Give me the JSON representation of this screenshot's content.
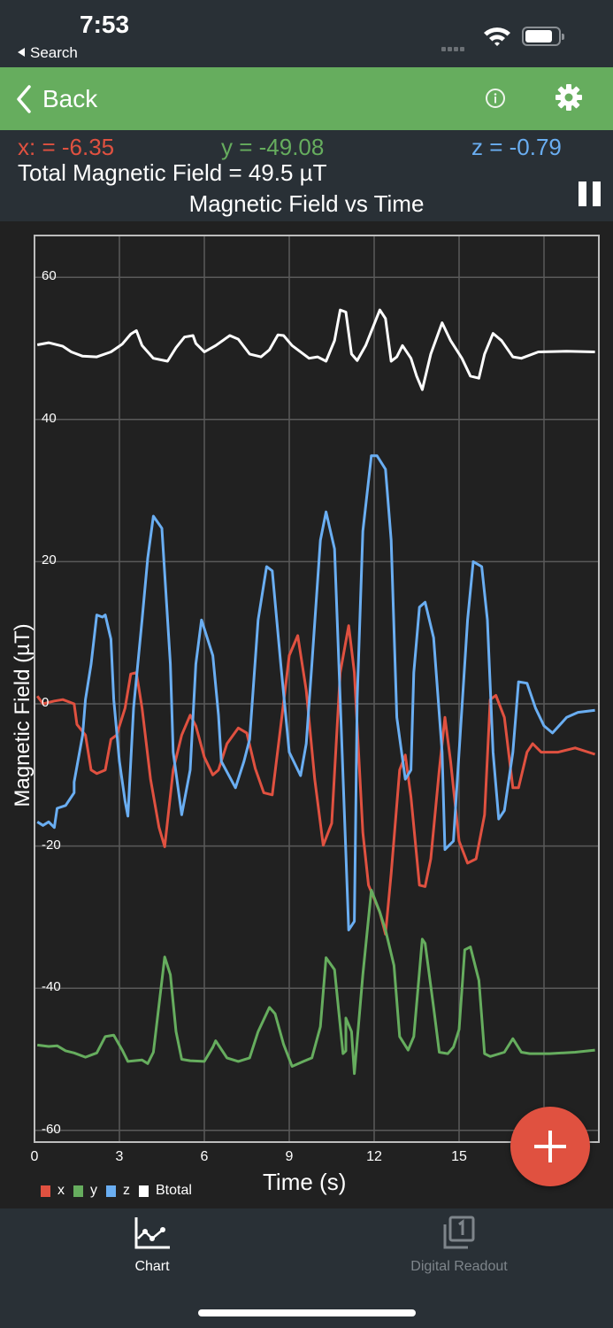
{
  "status_bar": {
    "time": "7:53",
    "back_app": "Search"
  },
  "nav": {
    "back_label": "Back",
    "info_icon": "info-icon",
    "settings_icon": "gear-icon",
    "accent_color": "#66ad5e"
  },
  "readout": {
    "x_text": "x: = -6.35",
    "y_text": "y = -49.08",
    "z_text": "z = -0.79",
    "total_text": "Total Magnetic Field =  49.5 µT",
    "chart_title": "Magnetic Field vs Time"
  },
  "fab": {
    "icon": "plus-icon",
    "color": "#e05140"
  },
  "tabs": [
    {
      "label": "Chart",
      "icon": "line-chart-icon",
      "active": true
    },
    {
      "label": "Digital Readout",
      "icon": "digital-readout-icon",
      "active": false
    }
  ],
  "chart_data": {
    "type": "line",
    "title": "Magnetic Field vs Time",
    "xlabel": "Time (s)",
    "ylabel": "Magnetic Field (µT)",
    "xlim": [
      0,
      19.9
    ],
    "ylim": [
      -64.5,
      65.5
    ],
    "xticks": [
      "0",
      "3",
      "6",
      "9",
      "12",
      "15"
    ],
    "yticks": [
      "60",
      "40",
      "20",
      "0",
      "-20",
      "-40",
      "-60"
    ],
    "grid": true,
    "legend_position": "bottom-left",
    "legend": [
      "x",
      "y",
      "z",
      "Btotal"
    ],
    "series": [
      {
        "name": "x",
        "color": "#e05140",
        "t": [
          0.1,
          0.3,
          0.7,
          1.0,
          1.4,
          1.5,
          1.8,
          2.0,
          2.2,
          2.5,
          2.7,
          2.9,
          3.2,
          3.4,
          3.6,
          3.8,
          4.1,
          4.4,
          4.6,
          4.9,
          5.2,
          5.5,
          5.7,
          6.0,
          6.3,
          6.5,
          6.8,
          7.2,
          7.5,
          7.8,
          8.1,
          8.4,
          8.7,
          9.0,
          9.3,
          9.6,
          9.9,
          10.2,
          10.5,
          10.8,
          11.1,
          11.3,
          11.6,
          11.8,
          12.2,
          12.4,
          12.6,
          12.9,
          13.1,
          13.3,
          13.6,
          13.8,
          14.0,
          14.3,
          14.5,
          14.7,
          15.0,
          15.3,
          15.6,
          15.9,
          16.1,
          16.3,
          16.6,
          16.9,
          17.1,
          17.4,
          17.6,
          17.9,
          18.5,
          19.1,
          19.8
        ],
        "values": [
          1.1,
          0.0,
          0.4,
          0.6,
          0.0,
          -2.9,
          -4.4,
          -9.3,
          -9.8,
          -9.3,
          -5.0,
          -4.4,
          -0.6,
          4.2,
          4.4,
          -0.6,
          -10.6,
          -17.4,
          -20.1,
          -9.3,
          -4.4,
          -1.6,
          -3.1,
          -7.5,
          -10.0,
          -9.3,
          -5.6,
          -3.4,
          -4.1,
          -9.1,
          -12.5,
          -12.8,
          -3.1,
          6.8,
          9.6,
          1.9,
          -10.6,
          -19.9,
          -16.8,
          4.4,
          11.0,
          4.4,
          -18.1,
          -25.5,
          -29.3,
          -32.4,
          -23.9,
          -9.3,
          -7.2,
          -13.1,
          -25.5,
          -25.7,
          -21.8,
          -9.3,
          -1.9,
          -8.1,
          -19.3,
          -22.4,
          -21.8,
          -15.6,
          0.6,
          1.2,
          -1.9,
          -11.8,
          -11.8,
          -6.8,
          -5.6,
          -6.8,
          -6.8,
          -6.2,
          -7.1
        ]
      },
      {
        "name": "y",
        "color": "#66ad5e",
        "t": [
          0.1,
          0.5,
          0.8,
          1.1,
          1.4,
          1.8,
          2.2,
          2.5,
          2.8,
          3.1,
          3.3,
          3.8,
          4.0,
          4.2,
          4.6,
          4.8,
          5.0,
          5.2,
          5.5,
          6.0,
          6.3,
          6.4,
          6.8,
          7.2,
          7.6,
          7.9,
          8.3,
          8.5,
          8.8,
          9.1,
          9.5,
          9.8,
          10.1,
          10.3,
          10.6,
          10.9,
          11.0,
          11.0,
          11.2,
          11.3,
          11.6,
          11.9,
          12.2,
          12.4,
          12.7,
          12.9,
          13.2,
          13.4,
          13.7,
          13.8,
          14.1,
          14.3,
          14.6,
          14.8,
          15.0,
          15.2,
          15.4,
          15.7,
          15.9,
          16.1,
          16.6,
          16.9,
          17.2,
          17.5,
          18.2,
          19.1,
          19.8
        ],
        "values": [
          -48.0,
          -48.2,
          -48.1,
          -48.8,
          -49.1,
          -49.7,
          -49.1,
          -46.8,
          -46.6,
          -48.7,
          -50.3,
          -50.1,
          -50.6,
          -49.0,
          -35.6,
          -38.1,
          -46.1,
          -50.0,
          -50.2,
          -50.3,
          -48.3,
          -47.4,
          -49.8,
          -50.3,
          -49.8,
          -46.1,
          -42.7,
          -43.6,
          -47.9,
          -51.0,
          -50.3,
          -49.8,
          -45.4,
          -35.7,
          -37.4,
          -49.2,
          -48.8,
          -44.2,
          -46.1,
          -52.0,
          -38.1,
          -26.2,
          -29.3,
          -31.8,
          -36.8,
          -46.8,
          -48.7,
          -46.8,
          -33.1,
          -33.7,
          -42.7,
          -49.0,
          -49.2,
          -48.3,
          -45.8,
          -34.6,
          -34.2,
          -38.9,
          -49.2,
          -49.6,
          -49.0,
          -47.1,
          -49.0,
          -49.2,
          -49.2,
          -49.0,
          -48.7
        ]
      },
      {
        "name": "z",
        "color": "#6aaef2",
        "t": [
          0.1,
          0.3,
          0.5,
          0.7,
          0.8,
          1.1,
          1.4,
          1.4,
          1.7,
          1.8,
          2.0,
          2.2,
          2.4,
          2.5,
          2.7,
          2.8,
          3.0,
          3.2,
          3.3,
          3.5,
          3.8,
          4.0,
          4.2,
          4.5,
          4.8,
          4.9,
          5.2,
          5.5,
          5.7,
          5.9,
          6.3,
          6.5,
          6.6,
          7.1,
          7.4,
          7.6,
          7.9,
          8.2,
          8.4,
          8.7,
          9.0,
          9.4,
          9.6,
          9.8,
          10.1,
          10.3,
          10.6,
          10.8,
          11.1,
          11.3,
          11.4,
          11.6,
          11.9,
          12.1,
          12.4,
          12.6,
          12.8,
          13.1,
          13.3,
          13.4,
          13.6,
          13.8,
          14.1,
          14.4,
          14.5,
          14.8,
          15.0,
          15.3,
          15.5,
          15.8,
          16.0,
          16.2,
          16.4,
          16.6,
          16.9,
          17.1,
          17.4,
          17.7,
          18.0,
          18.3,
          18.8,
          19.2,
          19.8
        ],
        "values": [
          -16.6,
          -17.1,
          -16.6,
          -17.4,
          -14.7,
          -14.3,
          -12.5,
          -11.0,
          -4.4,
          0.6,
          5.6,
          12.5,
          12.2,
          12.5,
          9.1,
          0.6,
          -8.1,
          -13.7,
          -15.8,
          -0.6,
          11.8,
          20.5,
          26.4,
          24.7,
          5.6,
          -6.8,
          -15.6,
          -9.3,
          5.6,
          11.8,
          6.8,
          -1.6,
          -8.1,
          -11.8,
          -8.1,
          -5.0,
          11.8,
          19.3,
          18.7,
          5.6,
          -6.8,
          -10.1,
          -5.6,
          5.6,
          23.0,
          27.0,
          21.8,
          0.6,
          -31.8,
          -30.6,
          0.6,
          24.3,
          34.9,
          34.9,
          33.0,
          23.0,
          -1.9,
          -10.6,
          -9.3,
          4.4,
          13.6,
          14.3,
          9.3,
          -6.8,
          -20.5,
          -19.3,
          -6.8,
          11.8,
          20.0,
          19.3,
          11.8,
          -6.8,
          -16.2,
          -15.0,
          -6.8,
          3.1,
          2.9,
          -0.6,
          -3.1,
          -4.1,
          -1.9,
          -1.2,
          -0.9
        ]
      },
      {
        "name": "Btotal",
        "color": "#ffffff",
        "t": [
          0.1,
          0.5,
          1.0,
          1.3,
          1.7,
          2.2,
          2.7,
          3.1,
          3.4,
          3.6,
          3.8,
          4.2,
          4.7,
          5.0,
          5.3,
          5.6,
          5.7,
          6.0,
          6.4,
          6.9,
          7.2,
          7.6,
          8.0,
          8.3,
          8.6,
          8.8,
          9.1,
          9.7,
          10.0,
          10.3,
          10.6,
          10.8,
          11.0,
          11.2,
          11.4,
          11.7,
          11.9,
          12.2,
          12.4,
          12.6,
          12.8,
          13.0,
          13.3,
          13.5,
          13.7,
          14.0,
          14.4,
          14.7,
          15.1,
          15.4,
          15.7,
          15.9,
          16.2,
          16.5,
          16.9,
          17.2,
          17.8,
          18.8,
          19.8
        ],
        "values": [
          50.5,
          50.8,
          50.3,
          49.5,
          48.9,
          48.8,
          49.5,
          50.6,
          52.0,
          52.5,
          50.4,
          48.6,
          48.2,
          50.1,
          51.6,
          51.8,
          50.7,
          49.5,
          50.4,
          51.8,
          51.3,
          49.2,
          48.8,
          49.8,
          51.9,
          51.8,
          50.4,
          48.6,
          48.8,
          48.2,
          51.1,
          55.4,
          55.1,
          49.2,
          48.3,
          50.4,
          52.4,
          55.4,
          54.2,
          48.2,
          48.8,
          50.4,
          48.6,
          46.1,
          44.2,
          49.2,
          53.6,
          51.1,
          48.6,
          46.1,
          45.8,
          49.2,
          52.1,
          51.1,
          48.8,
          48.6,
          49.5,
          49.6,
          49.5
        ]
      }
    ]
  }
}
